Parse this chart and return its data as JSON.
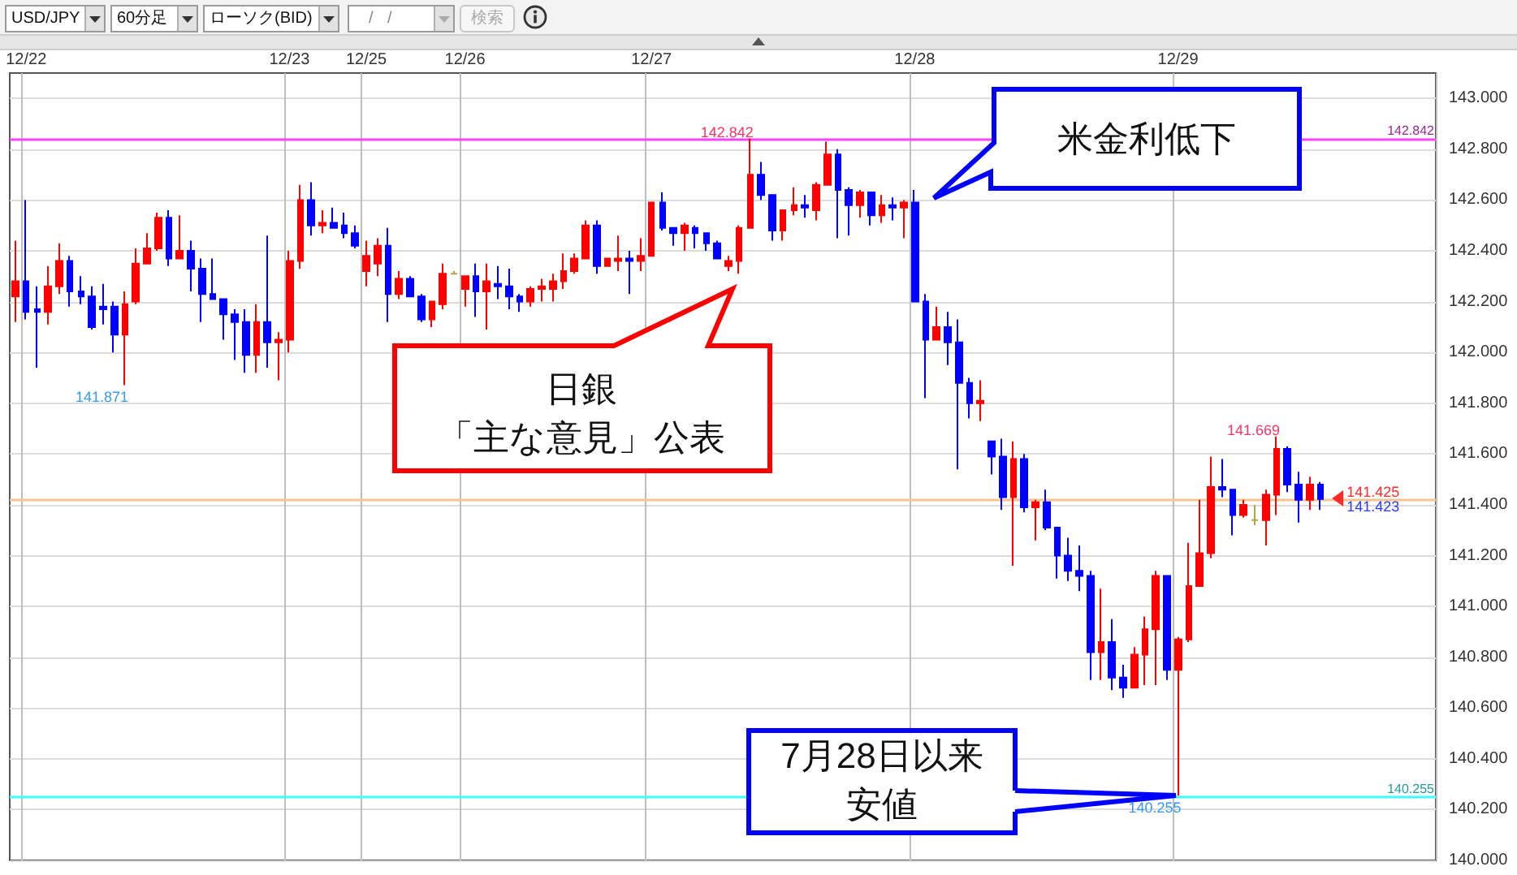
{
  "chart_data": {
    "type": "candlestick",
    "categories": [
      null,
      "12/22",
      null,
      null,
      null,
      null,
      null,
      null,
      null,
      null,
      null,
      null,
      null,
      null,
      null,
      null,
      null,
      null,
      null,
      null,
      null,
      null,
      null,
      null,
      null,
      "12/23",
      null,
      null,
      null,
      null,
      null,
      null,
      "12/25",
      null,
      null,
      null,
      null,
      null,
      null,
      null,
      null,
      "12/26",
      null,
      null,
      null,
      null,
      null,
      null,
      null,
      null,
      null,
      null,
      null,
      null,
      null,
      null,
      null,
      null,
      "12/27",
      null,
      null,
      null,
      null,
      null,
      null,
      null,
      null,
      null,
      null,
      null,
      null,
      null,
      null,
      null,
      null,
      null,
      null,
      null,
      null,
      null,
      null,
      null,
      "12/28",
      null,
      null,
      null,
      null,
      null,
      null,
      null,
      null,
      null,
      null,
      null,
      null,
      null,
      null,
      null,
      null,
      null,
      null,
      null,
      null,
      null,
      null,
      null,
      "12/29",
      null,
      null,
      null,
      null,
      null,
      null,
      null,
      null,
      null,
      null,
      null,
      null,
      null,
      null,
      null,
      null,
      null,
      null,
      null,
      null,
      null,
      null,
      null
    ],
    "ohlc": [
      [
        142.22,
        142.44,
        142.12,
        142.28
      ],
      [
        142.28,
        142.6,
        142.13,
        142.16
      ],
      [
        142.17,
        142.26,
        141.94,
        142.16
      ],
      [
        142.16,
        142.34,
        142.11,
        142.26
      ],
      [
        142.26,
        142.43,
        142.23,
        142.36
      ],
      [
        142.36,
        142.38,
        142.18,
        142.24
      ],
      [
        142.24,
        142.3,
        142.19,
        142.22
      ],
      [
        142.22,
        142.26,
        142.09,
        142.1
      ],
      [
        142.18,
        142.27,
        142.11,
        142.17
      ],
      [
        142.18,
        142.2,
        142.0,
        142.07
      ],
      [
        142.07,
        142.24,
        141.871,
        142.19
      ],
      [
        142.2,
        142.41,
        142.19,
        142.35
      ],
      [
        142.35,
        142.47,
        142.35,
        142.41
      ],
      [
        142.41,
        142.55,
        142.4,
        142.53
      ],
      [
        142.53,
        142.56,
        142.34,
        142.37
      ],
      [
        142.37,
        142.54,
        142.37,
        142.4
      ],
      [
        142.4,
        142.44,
        142.24,
        142.33
      ],
      [
        142.33,
        142.37,
        142.12,
        142.23
      ],
      [
        142.23,
        142.37,
        142.21,
        142.21
      ],
      [
        142.21,
        142.21,
        142.05,
        142.15
      ],
      [
        142.15,
        142.17,
        141.97,
        142.12
      ],
      [
        142.12,
        142.17,
        141.92,
        141.99
      ],
      [
        141.99,
        142.19,
        141.92,
        142.12
      ],
      [
        142.12,
        142.46,
        141.94,
        142.04
      ],
      [
        142.04,
        142.08,
        141.89,
        142.05
      ],
      [
        142.05,
        142.4,
        142.0,
        142.36
      ],
      [
        142.36,
        142.66,
        142.33,
        142.6
      ],
      [
        142.6,
        142.67,
        142.46,
        142.5
      ],
      [
        142.5,
        142.56,
        142.47,
        142.51
      ],
      [
        142.51,
        142.57,
        142.49,
        142.49
      ],
      [
        142.5,
        142.55,
        142.45,
        142.47
      ],
      [
        142.47,
        142.5,
        142.41,
        142.42
      ],
      [
        142.32,
        142.44,
        142.26,
        142.38
      ],
      [
        142.35,
        142.45,
        142.3,
        142.42
      ],
      [
        142.42,
        142.49,
        142.12,
        142.23
      ],
      [
        142.23,
        142.32,
        142.21,
        142.29
      ],
      [
        142.29,
        142.3,
        142.22,
        142.22
      ],
      [
        142.22,
        142.23,
        142.12,
        142.13
      ],
      [
        142.13,
        142.2,
        142.1,
        142.2
      ],
      [
        142.19,
        142.35,
        142.17,
        142.31
      ],
      [
        142.31,
        142.32,
        142.31,
        142.31
      ],
      [
        142.25,
        142.3,
        142.18,
        142.3
      ],
      [
        142.3,
        142.35,
        142.14,
        142.24
      ],
      [
        142.24,
        142.35,
        142.09,
        142.28
      ],
      [
        142.27,
        142.34,
        142.21,
        142.26
      ],
      [
        142.26,
        142.33,
        142.17,
        142.22
      ],
      [
        142.22,
        142.23,
        142.16,
        142.2
      ],
      [
        142.2,
        142.26,
        142.18,
        142.25
      ],
      [
        142.25,
        142.29,
        142.2,
        142.26
      ],
      [
        142.25,
        142.31,
        142.2,
        142.28
      ],
      [
        142.28,
        142.39,
        142.25,
        142.32
      ],
      [
        142.32,
        142.39,
        142.31,
        142.37
      ],
      [
        142.37,
        142.52,
        142.37,
        142.5
      ],
      [
        142.5,
        142.52,
        142.31,
        142.34
      ],
      [
        142.34,
        142.37,
        142.34,
        142.37
      ],
      [
        142.36,
        142.46,
        142.32,
        142.37
      ],
      [
        142.37,
        142.4,
        142.23,
        142.36
      ],
      [
        142.36,
        142.45,
        142.32,
        142.38
      ],
      [
        142.38,
        142.59,
        142.38,
        142.59
      ],
      [
        142.59,
        142.63,
        142.48,
        142.49
      ],
      [
        142.49,
        142.49,
        142.42,
        142.47
      ],
      [
        142.47,
        142.51,
        142.4,
        142.5
      ],
      [
        142.49,
        142.5,
        142.41,
        142.47
      ],
      [
        142.47,
        142.47,
        142.4,
        142.43
      ],
      [
        142.43,
        142.44,
        142.37,
        142.37
      ],
      [
        142.34,
        142.38,
        142.32,
        142.36
      ],
      [
        142.36,
        142.5,
        142.31,
        142.49
      ],
      [
        142.49,
        142.842,
        142.49,
        142.7
      ],
      [
        142.7,
        142.75,
        142.6,
        142.62
      ],
      [
        142.62,
        142.62,
        142.44,
        142.48
      ],
      [
        142.48,
        142.56,
        142.44,
        142.56
      ],
      [
        142.56,
        142.65,
        142.54,
        142.58
      ],
      [
        142.58,
        142.62,
        142.53,
        142.57
      ],
      [
        142.56,
        142.67,
        142.52,
        142.66
      ],
      [
        142.66,
        142.83,
        142.66,
        142.78
      ],
      [
        142.78,
        142.8,
        142.45,
        142.64
      ],
      [
        142.64,
        142.65,
        142.46,
        142.58
      ],
      [
        142.58,
        142.64,
        142.53,
        142.63
      ],
      [
        142.63,
        142.63,
        142.5,
        142.54
      ],
      [
        142.54,
        142.62,
        142.51,
        142.58
      ],
      [
        142.58,
        142.61,
        142.52,
        142.57
      ],
      [
        142.57,
        142.6,
        142.45,
        142.59
      ],
      [
        142.59,
        142.64,
        142.2,
        142.2
      ],
      [
        142.2,
        142.23,
        141.82,
        142.05
      ],
      [
        142.05,
        142.18,
        142.05,
        142.1
      ],
      [
        142.1,
        142.16,
        141.95,
        142.04
      ],
      [
        142.04,
        142.13,
        141.54,
        141.88
      ],
      [
        141.88,
        141.9,
        141.74,
        141.8
      ],
      [
        141.8,
        141.89,
        141.73,
        141.81
      ],
      [
        141.65,
        141.65,
        141.52,
        141.59
      ],
      [
        141.59,
        141.66,
        141.38,
        141.43
      ],
      [
        141.43,
        141.65,
        141.16,
        141.58
      ],
      [
        141.58,
        141.6,
        141.37,
        141.39
      ],
      [
        141.39,
        141.42,
        141.26,
        141.41
      ],
      [
        141.41,
        141.46,
        141.3,
        141.31
      ],
      [
        141.31,
        141.31,
        141.11,
        141.2
      ],
      [
        141.2,
        141.27,
        141.1,
        141.14
      ],
      [
        141.14,
        141.24,
        141.06,
        141.12
      ],
      [
        141.12,
        141.14,
        140.71,
        140.82
      ],
      [
        140.82,
        141.07,
        140.71,
        140.86
      ],
      [
        140.86,
        140.95,
        140.67,
        140.72
      ],
      [
        140.72,
        140.77,
        140.64,
        140.68
      ],
      [
        140.68,
        140.84,
        140.68,
        140.81
      ],
      [
        140.81,
        140.96,
        140.69,
        140.91
      ],
      [
        140.91,
        141.14,
        140.69,
        141.12
      ],
      [
        141.12,
        141.12,
        140.71,
        140.75
      ],
      [
        140.75,
        140.88,
        140.255,
        140.87
      ],
      [
        140.87,
        141.25,
        140.86,
        141.08
      ],
      [
        141.08,
        141.42,
        141.08,
        141.21
      ],
      [
        141.21,
        141.59,
        141.19,
        141.47
      ],
      [
        141.47,
        141.58,
        141.43,
        141.46
      ],
      [
        141.46,
        141.46,
        141.28,
        141.36
      ],
      [
        141.36,
        141.42,
        141.35,
        141.4
      ],
      [
        141.34,
        141.4,
        141.32,
        141.34
      ],
      [
        141.34,
        141.46,
        141.24,
        141.44
      ],
      [
        141.44,
        141.669,
        141.36,
        141.62
      ],
      [
        141.62,
        141.63,
        141.45,
        141.48
      ],
      [
        141.48,
        141.53,
        141.33,
        141.42
      ],
      [
        141.42,
        141.51,
        141.38,
        141.48
      ],
      [
        141.48,
        141.49,
        141.38,
        141.423
      ],
      null,
      null,
      null,
      null,
      null,
      null,
      null,
      null,
      null,
      null
    ],
    "colors": [
      "#ff0000",
      "#0000ff",
      "#0000ff",
      "#ff0000",
      "#ff0000",
      "#0000ff",
      "#0000ff",
      "#0000ff",
      "#0000ff",
      "#0000ff",
      "#ff0000",
      "#ff0000",
      "#ff0000",
      "#ff0000",
      "#0000ff",
      "#ff0000",
      "#0000ff",
      "#0000ff",
      "#0000ff",
      "#0000ff",
      "#0000ff",
      "#0000ff",
      "#ff0000",
      "#0000ff",
      "#ff0000",
      "#ff0000",
      "#ff0000",
      "#0000ff",
      "#ff0000",
      "#0000ff",
      "#0000ff",
      "#0000ff",
      "#ff0000",
      "#ff0000",
      "#0000ff",
      "#ff0000",
      "#0000ff",
      "#0000ff",
      "#ff0000",
      "#ff0000",
      "#b8a048",
      "#ff0000",
      "#0000ff",
      "#ff0000",
      "#0000ff",
      "#0000ff",
      "#0000ff",
      "#ff0000",
      "#ff0000",
      "#ff0000",
      "#ff0000",
      "#ff0000",
      "#ff0000",
      "#0000ff",
      "#ff0000",
      "#ff0000",
      "#0000ff",
      "#ff0000",
      "#ff0000",
      "#0000ff",
      "#0000ff",
      "#ff0000",
      "#0000ff",
      "#0000ff",
      "#0000ff",
      "#ff0000",
      "#ff0000",
      "#ff0000",
      "#0000ff",
      "#0000ff",
      "#ff0000",
      "#ff0000",
      "#0000ff",
      "#ff0000",
      "#ff0000",
      "#0000ff",
      "#0000ff",
      "#ff0000",
      "#0000ff",
      "#ff0000",
      "#0000ff",
      "#ff0000",
      "#0000ff",
      "#0000ff",
      "#ff0000",
      "#0000ff",
      "#0000ff",
      "#0000ff",
      "#ff0000",
      "#0000ff",
      "#0000ff",
      "#ff0000",
      "#0000ff",
      "#ff0000",
      "#0000ff",
      "#0000ff",
      "#0000ff",
      "#0000ff",
      "#0000ff",
      "#ff0000",
      "#0000ff",
      "#0000ff",
      "#ff0000",
      "#ff0000",
      "#ff0000",
      "#0000ff",
      "#ff0000",
      "#ff0000",
      "#ff0000",
      "#ff0000",
      "#0000ff",
      "#0000ff",
      "#ff0000",
      "#b8a048",
      "#ff0000",
      "#ff0000",
      "#0000ff",
      "#0000ff",
      "#ff0000",
      "#0000ff",
      null,
      null,
      null,
      null,
      null,
      null,
      null,
      null,
      null,
      null
    ],
    "ylim": [
      140,
      143.1
    ],
    "yticks": [
      {
        "value": 140,
        "label": "140.000"
      },
      {
        "value": 140.2,
        "label": "140.200"
      },
      {
        "value": 140.4,
        "label": "140.400"
      },
      {
        "value": 140.6,
        "label": "140.600"
      },
      {
        "value": 140.8,
        "label": "140.800"
      },
      {
        "value": 141,
        "label": "141.000"
      },
      {
        "value": 141.2,
        "label": "141.200"
      },
      {
        "value": 141.4,
        "label": "141.400"
      },
      {
        "value": 141.6,
        "label": "141.600"
      },
      {
        "value": 141.8,
        "label": "141.800"
      },
      {
        "value": 142,
        "label": "142.000"
      },
      {
        "value": 142.2,
        "label": "142.200"
      },
      {
        "value": 142.4,
        "label": "142.400"
      },
      {
        "value": 142.6,
        "label": "142.600"
      },
      {
        "value": 142.8,
        "label": "142.800"
      },
      {
        "value": 143,
        "label": "143.000"
      }
    ],
    "grid": true,
    "ref_lines": [
      {
        "axis": "y",
        "value": 142.842,
        "label": "142.842",
        "color": "#ff40ff"
      },
      {
        "axis": "y",
        "value": 141.42,
        "color": "#f7c48e"
      },
      {
        "axis": "y",
        "value": 140.255,
        "label": "140.255",
        "color": "#40ffff"
      }
    ],
    "annotations": [
      "USD/JPY",
      "60分足",
      "ローソク(BID)",
      "/ /",
      "検索",
      "日銀「主な意見」公表",
      "米金利低下",
      {
        "text": "7月28日以来安値",
        "x": "12/29",
        "y": 140.255
      },
      {
        "text": "142.842",
        "y": 142.842
      },
      "141.871",
      "141.669",
      {
        "text": "140.255",
        "y": 140.255
      },
      {
        "text": "141.425",
        "y": 141.425
      },
      {
        "text": "141.423",
        "y": 141.423
      }
    ]
  }
}
